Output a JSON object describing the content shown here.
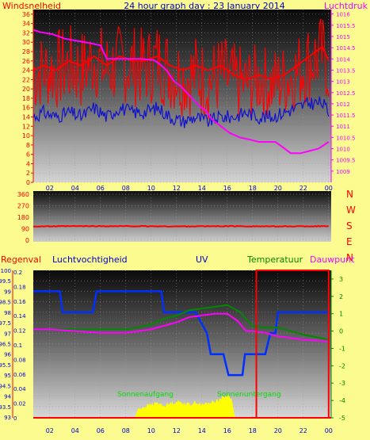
{
  "header": {
    "left_label": "Windsnelheid",
    "title": "24 hour graph day : 23 January 2014",
    "right_label": "Luchtdruk"
  },
  "middle": {
    "compass_labels": [
      "N",
      "W",
      "S",
      "E",
      "N"
    ]
  },
  "bottom_header": {
    "regenval": "Regenval",
    "luchtvochtigheid": "Luchtvochtigheid",
    "uv": "UV",
    "temperatuur": "Temperatuur",
    "dauwpunt": "Dauwpunt"
  },
  "colors": {
    "background": "#fbfb90",
    "wind_gust": "#ff0000",
    "wind_avg": "#1010d0",
    "pressure": "#ff00ff",
    "direction": "#ff0000",
    "humidity": "#0030ff",
    "temperature": "#008a00",
    "dewpoint": "#ff00ff",
    "solar": "#ffff00",
    "highlight_box": "#ff0000"
  },
  "chart_data": [
    {
      "type": "line",
      "panel": "wind-pressure",
      "x_ticks": [
        "02",
        "04",
        "06",
        "08",
        "10",
        "12",
        "14",
        "16",
        "18",
        "20",
        "22",
        "00"
      ],
      "left_axis": {
        "ticks": [
          36,
          34,
          32,
          30,
          28,
          26,
          24,
          22,
          20,
          18,
          16,
          14,
          12,
          10,
          8,
          6,
          4,
          2,
          0
        ],
        "range": [
          0,
          37
        ]
      },
      "right_axis": {
        "ticks": [
          "1016",
          "1015.5",
          "1015",
          "1014.5",
          "1014",
          "1013.5",
          "1013",
          "1012.5",
          "1012",
          "1011.5",
          "1011",
          "1010.5",
          "1010",
          "1009.5",
          "1009"
        ],
        "range": [
          1008.5,
          1016.2
        ]
      },
      "x_range_hours": [
        0.7,
        24.2
      ],
      "series": [
        {
          "name": "Windsnelheid",
          "axis": "left",
          "style": "gust-band",
          "x": [
            0.7,
            1.5,
            2.5,
            3.5,
            4.5,
            5.5,
            6.5,
            7.5,
            8.5,
            9.5,
            10.5,
            11.5,
            12.5,
            13.5,
            14.5,
            15.5,
            16.5,
            17.5,
            18.5,
            19.5,
            20.5,
            21.5,
            22.5,
            23.5,
            24.0
          ],
          "values": [
            24,
            25,
            24,
            26,
            25,
            27,
            25,
            27,
            26,
            26,
            27,
            25,
            24,
            25,
            24,
            25,
            23,
            22,
            23,
            22,
            23,
            25,
            27,
            29,
            26
          ],
          "low": [
            14,
            16,
            15,
            16,
            15,
            18,
            15,
            17,
            16,
            16,
            17,
            15,
            14,
            14,
            13,
            14,
            13,
            13,
            14,
            13,
            14,
            15,
            17,
            19,
            16
          ],
          "high": [
            33,
            32,
            33,
            34,
            33,
            35,
            33,
            34,
            34,
            33,
            35,
            33,
            31,
            32,
            30,
            32,
            30,
            29,
            30,
            29,
            30,
            32,
            35,
            36,
            33
          ]
        },
        {
          "name": "Windsnelheid",
          "axis": "left",
          "style": "average",
          "x": [
            0.7,
            1.5,
            2.5,
            3.5,
            4.5,
            5.5,
            6.5,
            7.5,
            8.5,
            9.5,
            10.5,
            11.5,
            12.5,
            13.5,
            14.5,
            15.5,
            16.5,
            17.5,
            18.5,
            19.5,
            20.5,
            21.5,
            22.5,
            23.5,
            24.0
          ],
          "values": [
            14,
            15,
            14,
            15,
            14,
            16,
            14,
            16,
            15,
            15,
            16,
            14,
            13,
            14,
            13,
            14,
            14,
            15,
            14,
            14,
            15,
            16,
            17,
            17,
            15
          ]
        },
        {
          "name": "Luchtdruk",
          "axis": "right",
          "style": "line",
          "x": [
            0.7,
            1.2,
            2.2,
            3.2,
            4.2,
            5.2,
            6.0,
            6.5,
            7.2,
            8.2,
            9.2,
            10.2,
            10.6,
            11.2,
            11.8,
            12.3,
            12.8,
            13.3,
            13.8,
            14.3,
            14.8,
            15.5,
            16.2,
            17.0,
            17.8,
            18.5,
            19.2,
            19.8,
            20.3,
            21.0,
            21.8,
            22.5,
            23.2,
            24.0
          ],
          "values": [
            1015.3,
            1015.2,
            1015.1,
            1014.9,
            1014.8,
            1014.7,
            1014.6,
            1014.0,
            1014.0,
            1014.0,
            1014.0,
            1013.95,
            1013.8,
            1013.5,
            1013.0,
            1012.8,
            1012.5,
            1012.2,
            1011.9,
            1011.7,
            1011.3,
            1011.0,
            1010.7,
            1010.5,
            1010.4,
            1010.3,
            1010.3,
            1010.3,
            1010.1,
            1009.8,
            1009.8,
            1009.9,
            1010.0,
            1010.3
          ]
        }
      ]
    },
    {
      "type": "line",
      "panel": "wind-direction",
      "x_ticks": [
        "02",
        "04",
        "06",
        "08",
        "10",
        "12",
        "14",
        "16",
        "18",
        "20",
        "22",
        "00"
      ],
      "left_axis": {
        "ticks": [
          360,
          270,
          180,
          90,
          0
        ],
        "range": [
          0,
          360
        ]
      },
      "x_range_hours": [
        0.7,
        24.2
      ],
      "series": [
        {
          "name": "wind direction",
          "axis": "left",
          "x": [
            0.7,
            4,
            8,
            12,
            16,
            20,
            24
          ],
          "values": [
            108,
            110,
            110,
            108,
            110,
            108,
            110
          ]
        }
      ]
    },
    {
      "type": "line",
      "panel": "humidity-temp-uv",
      "x_ticks": [
        "02",
        "04",
        "06",
        "08",
        "10",
        "12",
        "14",
        "16",
        "18",
        "20",
        "22",
        "00"
      ],
      "humidity_axis": {
        "ticks": [
          "100",
          "99.5",
          "99",
          "98.5",
          "98",
          "97.5",
          "97",
          "96.5",
          "96",
          "95.5",
          "95",
          "94.5",
          "94",
          "93.5",
          "93"
        ],
        "range": [
          93,
          100
        ]
      },
      "uv_axis": {
        "ticks": [
          "0.2",
          "0.18",
          "0.16",
          "0.14",
          "0.12",
          "0.1",
          "0.08",
          "0.06",
          "0.04",
          "0.02",
          "0"
        ],
        "range": [
          0,
          0.2
        ]
      },
      "temp_axis": {
        "ticks": [
          3,
          2,
          1,
          0,
          -1,
          -2,
          -3,
          -4,
          -5
        ],
        "range": [
          -5,
          3.5
        ]
      },
      "x_range_hours": [
        0.7,
        24.2
      ],
      "annotations": {
        "sunrise": "Sonnenaufgang",
        "sunset": "Sonnenuntergang"
      },
      "highlight_hours": [
        18.3,
        24.0
      ],
      "series": [
        {
          "name": "Luchtvochtigheid",
          "axis": "humidity",
          "style": "step",
          "x": [
            0.7,
            2.8,
            3.0,
            5.4,
            5.7,
            10.8,
            11.0,
            12.6,
            13.5,
            14.4,
            14.7,
            15.7,
            16.1,
            17.2,
            17.4,
            19.0,
            19.4,
            19.8,
            20.0,
            24.0
          ],
          "values": [
            99,
            99,
            98,
            98,
            99,
            99,
            98,
            98,
            98,
            97,
            96,
            96,
            95,
            95,
            96,
            96,
            97,
            97,
            98,
            98
          ]
        },
        {
          "name": "Temperatuur",
          "axis": "temp",
          "x": [
            0.7,
            2.0,
            4.0,
            6.0,
            8.0,
            9.0,
            10.0,
            11.0,
            12.0,
            13.0,
            14.0,
            15.0,
            16.0,
            17.0,
            18.0,
            19.0,
            20.0,
            22.0,
            24.0
          ],
          "values": [
            0.1,
            0.1,
            0.1,
            0.1,
            0.1,
            0.2,
            0.4,
            0.7,
            0.9,
            1.2,
            1.3,
            1.4,
            1.5,
            1.1,
            0.3,
            0.2,
            0.2,
            -0.2,
            -0.5
          ]
        },
        {
          "name": "Dauwpunt",
          "axis": "temp",
          "x": [
            0.7,
            2.0,
            4.0,
            6.0,
            8.0,
            9.0,
            10.0,
            11.0,
            12.0,
            13.0,
            14.0,
            15.0,
            16.0,
            16.8,
            17.5,
            18.0,
            19.0,
            20.0,
            22.0,
            24.0
          ],
          "values": [
            0.1,
            0.1,
            0.0,
            -0.1,
            -0.1,
            0.0,
            0.1,
            0.3,
            0.5,
            0.8,
            0.9,
            1.0,
            1.0,
            0.6,
            0.0,
            0.0,
            -0.1,
            -0.3,
            -0.5,
            -0.6
          ]
        },
        {
          "name": "UV",
          "axis": "uv",
          "style": "solar-fill",
          "x": [
            8.7,
            9.0,
            9.5,
            10.0,
            10.5,
            11.0,
            11.5,
            12.0,
            12.5,
            13.0,
            13.5,
            14.0,
            14.5,
            15.0,
            15.5,
            16.0,
            16.3,
            16.6
          ],
          "values": [
            0.0,
            0.012,
            0.015,
            0.018,
            0.02,
            0.016,
            0.019,
            0.022,
            0.02,
            0.018,
            0.021,
            0.017,
            0.02,
            0.022,
            0.026,
            0.03,
            0.028,
            0.0
          ]
        }
      ]
    }
  ]
}
